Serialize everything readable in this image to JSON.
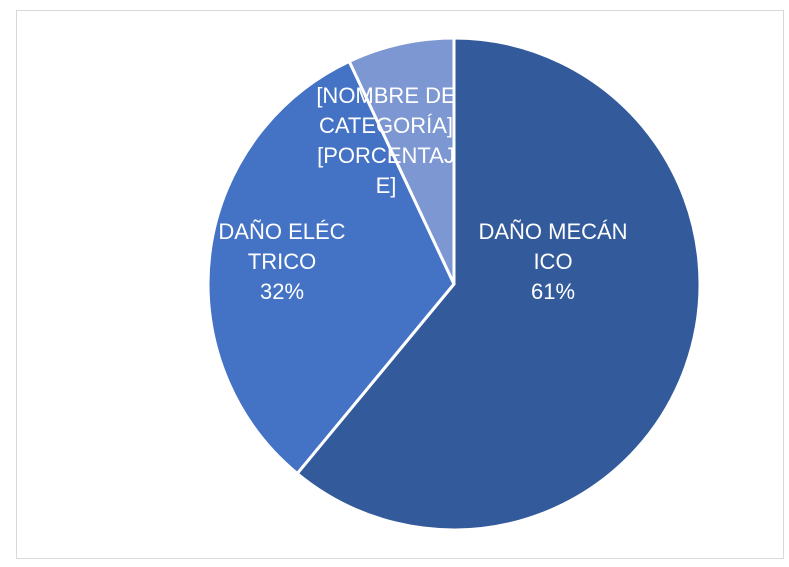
{
  "chart_data": {
    "type": "pie",
    "slices": [
      {
        "name": "DAÑO MECÁNICO",
        "value": 61,
        "display_name": "DAÑO MECÁNICO",
        "display_value": "61%",
        "color": "#335a9a"
      },
      {
        "name": "DAÑO ELÉCTRICO",
        "value": 32,
        "display_name": "DAÑO ELÉCTRICO",
        "display_value": "32%",
        "color": "#4472c4"
      },
      {
        "name": "[NOMBRE DE CATEGORÍA]",
        "value": 7,
        "display_name": "[NOMBRE DE CATEGORÍA]",
        "display_value": "[PORCENTAJE]",
        "color": "#7c97d2"
      }
    ],
    "start_angle_deg": 0,
    "direction": "clockwise",
    "legend": "none",
    "title": ""
  }
}
